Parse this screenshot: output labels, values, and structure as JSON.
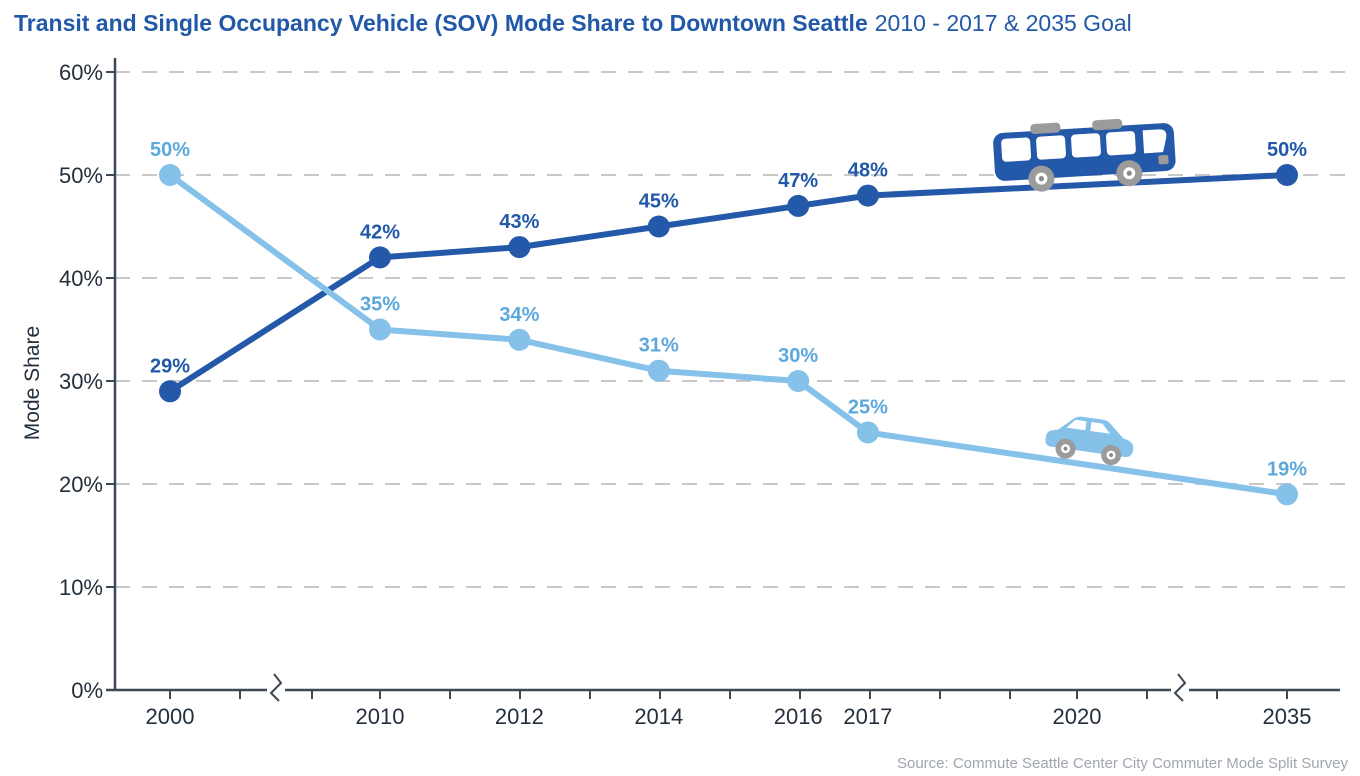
{
  "title": {
    "main": "Transit and Single Occupancy Vehicle (SOV) Mode Share to Downtown Seattle",
    "suffix": "2010 - 2017 & 2035 Goal"
  },
  "source": "Source: Commute Seattle Center City Commuter Mode Split Survey",
  "colors": {
    "title_blue": "#2158A8",
    "transit_blue": "#2458A8",
    "sov_blue": "#85C1E8",
    "sov_label": "#5CA8DC",
    "grid": "#C8C8C8",
    "axis": "#3E4854",
    "tick_text": "#242F3C",
    "source_gray": "#A0A6AD",
    "icon_gray": "#9B9B9B"
  },
  "icons": {
    "transit": "bus-icon",
    "sov": "car-icon"
  },
  "chart_data": {
    "type": "line",
    "title": "Transit and Single Occupancy Vehicle (SOV) Mode Share to Downtown Seattle 2010 - 2017 & 2035 Goal",
    "ylabel": "Mode Share",
    "xlabel": "",
    "ylim": [
      0,
      60
    ],
    "y_tick_labels": [
      "0%",
      "10%",
      "20%",
      "30%",
      "40%",
      "50%",
      "60%"
    ],
    "x_tick_labels": [
      "2000",
      "2010",
      "2012",
      "2014",
      "2016",
      "2017",
      "2020",
      "2035"
    ],
    "axis_breaks": [
      {
        "between": [
          "2000",
          "2010"
        ]
      },
      {
        "between": [
          "2020",
          "2035"
        ]
      }
    ],
    "grid": "horizontal dashed",
    "legend": "none",
    "series": [
      {
        "name": "Transit",
        "color": "#2458A8",
        "label_color": "#2158A8",
        "icon": "bus-icon",
        "x": [
          2000,
          2010,
          2012,
          2014,
          2016,
          2017,
          2035
        ],
        "values": [
          29,
          42,
          43,
          45,
          47,
          48,
          50
        ],
        "point_labels": [
          "29%",
          "42%",
          "43%",
          "45%",
          "47%",
          "48%",
          "50%"
        ]
      },
      {
        "name": "SOV",
        "color": "#85C1E8",
        "label_color": "#5CA8DC",
        "icon": "car-icon",
        "x": [
          2000,
          2010,
          2012,
          2014,
          2016,
          2017,
          2035
        ],
        "values": [
          50,
          35,
          34,
          31,
          30,
          25,
          19
        ],
        "point_labels": [
          "50%",
          "35%",
          "34%",
          "31%",
          "30%",
          "25%",
          "19%"
        ]
      }
    ]
  }
}
